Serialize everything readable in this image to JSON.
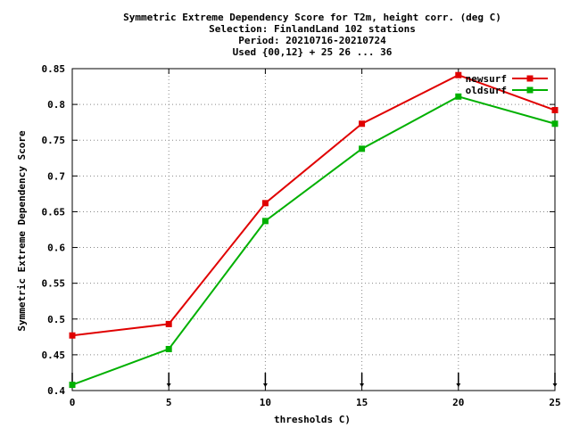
{
  "chart_data": {
    "type": "line",
    "title_lines": [
      "Symmetric Extreme Dependency Score  for T2m, height corr. (deg C)",
      "Selection: FinlandLand    102 stations",
      "Period: 20210716-20210724",
      "Used {00,12} + 25 26 ... 36"
    ],
    "xlabel": "thresholds C)",
    "ylabel": "Symmetric Extreme Dependency Score",
    "x": [
      0,
      5,
      10,
      15,
      20,
      25
    ],
    "xlim": [
      0,
      25
    ],
    "ylim": [
      0.4,
      0.85
    ],
    "xticks": [
      0,
      5,
      10,
      15,
      20,
      25
    ],
    "yticks": [
      0.4,
      0.45,
      0.5,
      0.55,
      0.6,
      0.65,
      0.7,
      0.75,
      0.8,
      0.85
    ],
    "grid": true,
    "legend_position": "top-right",
    "series": [
      {
        "name": "newsurf",
        "color": "#e00000",
        "values": [
          0.477,
          0.493,
          0.662,
          0.773,
          0.841,
          0.792
        ]
      },
      {
        "name": "oldsurf",
        "color": "#00b000",
        "values": [
          0.408,
          0.458,
          0.637,
          0.738,
          0.811,
          0.773
        ]
      }
    ]
  }
}
